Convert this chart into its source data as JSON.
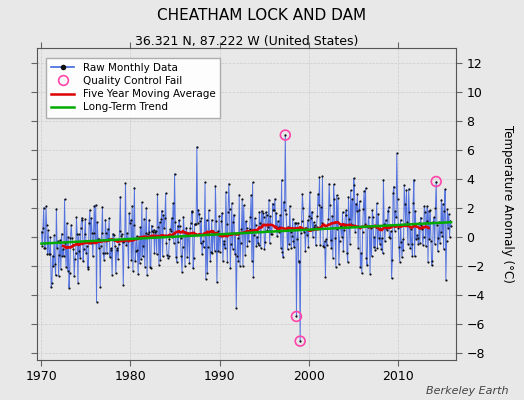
{
  "title": "CHEATHAM LOCK AND DAM",
  "subtitle": "36.321 N, 87.222 W (United States)",
  "ylabel": "Temperature Anomaly (°C)",
  "watermark": "Berkeley Earth",
  "ylim": [
    -8.5,
    13
  ],
  "xlim": [
    1969.5,
    2016.5
  ],
  "xticks": [
    1970,
    1980,
    1990,
    2000,
    2010
  ],
  "yticks": [
    -8,
    -6,
    -4,
    -2,
    0,
    2,
    4,
    6,
    8,
    10,
    12
  ],
  "bg_color": "#e8e8e8",
  "raw_line_color": "#4466dd",
  "raw_marker_color": "#111111",
  "qc_fail_color": "#ff44aa",
  "moving_avg_color": "#dd0000",
  "trend_color": "#00aa00",
  "title_fontsize": 11,
  "subtitle_fontsize": 9,
  "tick_fontsize": 9,
  "ylabel_fontsize": 8.5,
  "legend_fontsize": 7.5,
  "watermark_fontsize": 8,
  "seed": 42
}
